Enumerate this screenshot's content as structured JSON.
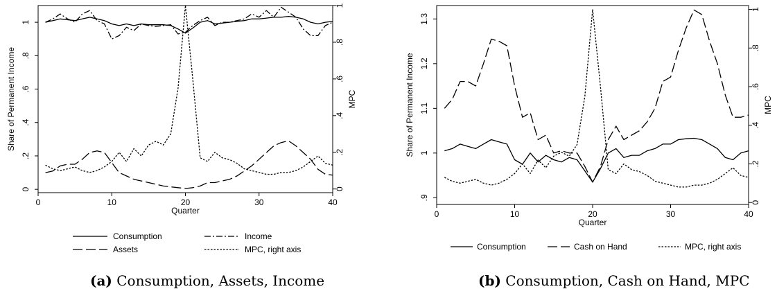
{
  "chart_data": [
    {
      "type": "line",
      "caption_tag": "(a)",
      "caption": "Consumption, Assets, Income",
      "xlabel": "Quarter",
      "ylabel": "Share of Permanent Income",
      "y2label": "MPC",
      "xlim": [
        0,
        40
      ],
      "ylim": [
        -0.02,
        1.1
      ],
      "y2lim": [
        -0.02,
        1.0
      ],
      "xticks": [
        "0",
        "10",
        "20",
        "30",
        "40"
      ],
      "yticks": [
        "0",
        ".2",
        ".4",
        ".6",
        ".8",
        "1"
      ],
      "y2ticks": [
        "0",
        ".2",
        ".4",
        ".6",
        ".8",
        "1"
      ],
      "grid": false,
      "legend_placement": "bottom",
      "x": [
        1,
        2,
        3,
        4,
        5,
        6,
        7,
        8,
        9,
        10,
        11,
        12,
        13,
        14,
        15,
        16,
        17,
        18,
        19,
        20,
        21,
        22,
        23,
        24,
        25,
        26,
        27,
        28,
        29,
        30,
        31,
        32,
        33,
        34,
        35,
        36,
        37,
        38,
        39,
        40
      ],
      "series": [
        {
          "name": "Consumption",
          "dash": "",
          "axis": "left",
          "values": [
            1.0,
            1.01,
            1.02,
            1.015,
            1.01,
            1.02,
            1.03,
            1.02,
            1.01,
            0.99,
            0.98,
            0.99,
            0.98,
            0.99,
            0.985,
            0.985,
            0.985,
            0.98,
            0.96,
            0.935,
            0.965,
            1.0,
            1.01,
            0.99,
            0.995,
            1.0,
            1.005,
            1.01,
            1.02,
            1.02,
            1.025,
            1.03,
            1.03,
            1.035,
            1.03,
            1.02,
            1.0,
            0.99,
            1.0,
            1.005
          ]
        },
        {
          "name": "Income",
          "dash": "9 3 2 3",
          "axis": "left",
          "values": [
            1.0,
            1.02,
            1.05,
            1.02,
            1.0,
            1.05,
            1.07,
            1.01,
            0.99,
            0.9,
            0.92,
            0.97,
            0.95,
            0.99,
            0.98,
            0.975,
            0.98,
            0.985,
            0.93,
            0.94,
            0.98,
            1.01,
            1.03,
            0.98,
            1.0,
            1.0,
            1.01,
            1.02,
            1.05,
            1.03,
            1.07,
            1.03,
            1.09,
            1.06,
            1.03,
            0.96,
            0.92,
            0.92,
            0.98,
            1.0
          ]
        },
        {
          "name": "Assets",
          "dash": "14 5",
          "axis": "left",
          "values": [
            0.1,
            0.11,
            0.14,
            0.15,
            0.15,
            0.18,
            0.22,
            0.23,
            0.22,
            0.16,
            0.1,
            0.08,
            0.06,
            0.05,
            0.04,
            0.03,
            0.02,
            0.015,
            0.01,
            0.005,
            0.01,
            0.02,
            0.04,
            0.04,
            0.05,
            0.06,
            0.08,
            0.11,
            0.14,
            0.18,
            0.22,
            0.26,
            0.28,
            0.29,
            0.26,
            0.22,
            0.18,
            0.12,
            0.09,
            0.085
          ]
        },
        {
          "name": "MPC, right axis",
          "dash": "2.5 2",
          "axis": "right",
          "values": [
            0.13,
            0.11,
            0.1,
            0.11,
            0.12,
            0.1,
            0.09,
            0.1,
            0.12,
            0.15,
            0.2,
            0.15,
            0.22,
            0.18,
            0.24,
            0.26,
            0.24,
            0.3,
            0.55,
            1.0,
            0.6,
            0.17,
            0.15,
            0.2,
            0.17,
            0.16,
            0.14,
            0.11,
            0.1,
            0.09,
            0.08,
            0.08,
            0.09,
            0.09,
            0.1,
            0.12,
            0.15,
            0.18,
            0.14,
            0.13
          ]
        }
      ]
    },
    {
      "type": "line",
      "caption_tag": "(b)",
      "caption": "Consumption, Cash on Hand, MPC",
      "xlabel": "Quarter",
      "ylabel": "Share of Permanent Income",
      "y2label": "MPC",
      "xlim": [
        0,
        40
      ],
      "ylim": [
        0.885,
        1.33
      ],
      "y2lim": [
        -0.01,
        1.02
      ],
      "xticks": [
        "0",
        "10",
        "20",
        "30",
        "40"
      ],
      "yticks": [
        ".9",
        "1",
        "1.1",
        "1.2",
        "1.3"
      ],
      "y2ticks": [
        "0",
        ".2",
        ".4",
        ".6",
        ".8",
        "1"
      ],
      "grid": false,
      "legend_placement": "bottom",
      "x": [
        1,
        2,
        3,
        4,
        5,
        6,
        7,
        8,
        9,
        10,
        11,
        12,
        13,
        14,
        15,
        16,
        17,
        18,
        19,
        20,
        21,
        22,
        23,
        24,
        25,
        26,
        27,
        28,
        29,
        30,
        31,
        32,
        33,
        34,
        35,
        36,
        37,
        38,
        39,
        40
      ],
      "series": [
        {
          "name": "Consumption",
          "dash": "",
          "axis": "left",
          "values": [
            1.005,
            1.01,
            1.02,
            1.015,
            1.01,
            1.02,
            1.03,
            1.025,
            1.02,
            0.985,
            0.975,
            1.0,
            0.98,
            0.995,
            0.985,
            0.98,
            0.99,
            0.985,
            0.96,
            0.935,
            0.965,
            1.0,
            1.01,
            0.99,
            0.995,
            0.995,
            1.005,
            1.01,
            1.02,
            1.02,
            1.03,
            1.032,
            1.033,
            1.03,
            1.02,
            1.01,
            0.99,
            0.985,
            1.0,
            1.005
          ]
        },
        {
          "name": "Cash on Hand",
          "dash": "14 5",
          "axis": "left",
          "values": [
            1.1,
            1.12,
            1.16,
            1.16,
            1.15,
            1.2,
            1.255,
            1.25,
            1.24,
            1.15,
            1.08,
            1.09,
            1.03,
            1.04,
            1.0,
            1.005,
            1.0,
            1.0,
            0.97,
            0.935,
            0.97,
            1.03,
            1.06,
            1.03,
            1.04,
            1.05,
            1.07,
            1.1,
            1.16,
            1.17,
            1.23,
            1.28,
            1.32,
            1.31,
            1.25,
            1.2,
            1.13,
            1.08,
            1.08,
            1.085
          ]
        },
        {
          "name": "MPC, right axis",
          "dash": "2.5 2",
          "axis": "right",
          "values": [
            0.13,
            0.11,
            0.1,
            0.11,
            0.12,
            0.1,
            0.09,
            0.1,
            0.12,
            0.15,
            0.2,
            0.15,
            0.22,
            0.18,
            0.24,
            0.26,
            0.24,
            0.3,
            0.55,
            1.0,
            0.6,
            0.17,
            0.15,
            0.2,
            0.17,
            0.16,
            0.14,
            0.11,
            0.1,
            0.09,
            0.08,
            0.08,
            0.09,
            0.09,
            0.1,
            0.12,
            0.15,
            0.18,
            0.14,
            0.13
          ]
        }
      ]
    }
  ]
}
